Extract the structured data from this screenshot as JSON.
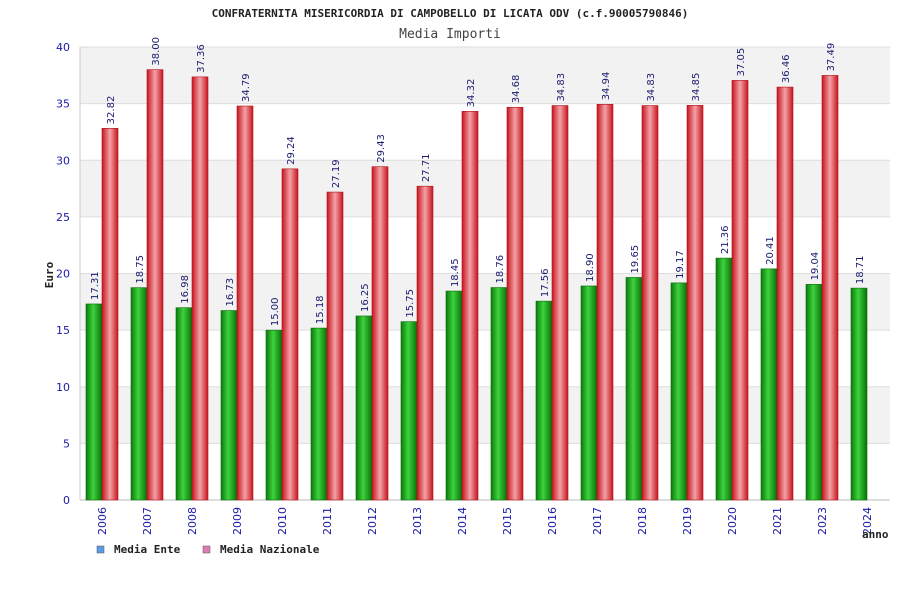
{
  "chart_data": {
    "type": "bar",
    "title": "CONFRATERNITA MISERICORDIA DI CAMPOBELLO DI LICATA ODV (c.f.90005790846)",
    "subtitle": "Media Importi",
    "ylabel": "Euro",
    "xlabel": "anno",
    "ylim": [
      0,
      40
    ],
    "yticks": [
      0,
      5,
      10,
      15,
      20,
      25,
      30,
      35,
      40
    ],
    "grid": true,
    "legend_position": "bottom-left",
    "categories": [
      "2006",
      "2007",
      "2008",
      "2009",
      "2010",
      "2011",
      "2012",
      "2013",
      "2014",
      "2015",
      "2016",
      "2017",
      "2018",
      "2019",
      "2020",
      "2021",
      "2023",
      "2024"
    ],
    "series": [
      {
        "name": "Media Ente",
        "color": "#1db51d",
        "legend_color": "#5b9be8",
        "values": [
          17.31,
          18.75,
          16.98,
          16.73,
          15.0,
          15.18,
          16.25,
          15.75,
          18.45,
          18.76,
          17.56,
          18.9,
          19.65,
          19.17,
          21.36,
          20.41,
          19.04,
          18.71
        ],
        "labels": [
          "17.31",
          "18.75",
          "16.98",
          "16.73",
          "15.00",
          "15.18",
          "16.25",
          "15.75",
          "18.45",
          "18.76",
          "17.56",
          "18.90",
          "19.65",
          "19.17",
          "21.36",
          "20.41",
          "19.04",
          "18.71"
        ]
      },
      {
        "name": "Media Nazionale",
        "color": "#e8242f",
        "legend_color": "#e07ab0",
        "values": [
          32.82,
          38.0,
          37.36,
          34.79,
          29.24,
          27.19,
          29.43,
          27.71,
          34.32,
          34.68,
          34.83,
          34.94,
          34.83,
          34.85,
          37.05,
          36.46,
          37.49,
          null
        ],
        "labels": [
          "32.82",
          "38.00",
          "37.36",
          "34.79",
          "29.24",
          "27.19",
          "29.43",
          "27.71",
          "34.32",
          "34.68",
          "34.83",
          "34.94",
          "34.83",
          "34.85",
          "37.05",
          "36.46",
          "37.49",
          ""
        ]
      }
    ]
  }
}
